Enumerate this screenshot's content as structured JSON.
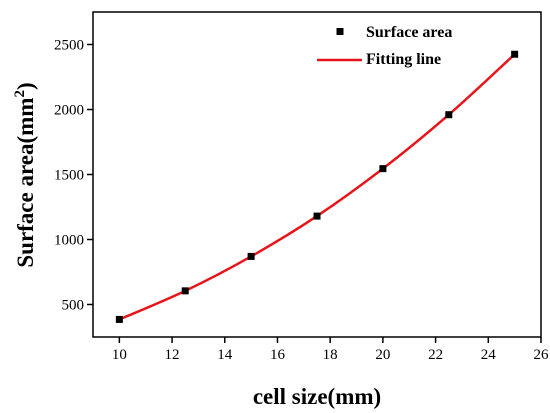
{
  "chart_data": {
    "type": "scatter",
    "title": "",
    "xlabel": "cell size(mm)",
    "ylabel_main": "Surface area(mm",
    "ylabel_sup": "2",
    "ylabel_close": ")",
    "xlim": [
      9,
      26
    ],
    "ylim": [
      250,
      2750
    ],
    "x_ticks": [
      10,
      12,
      14,
      16,
      18,
      20,
      22,
      24,
      26
    ],
    "y_ticks": [
      500,
      1000,
      1500,
      2000,
      2500
    ],
    "grid": false,
    "legend_position": "top-right",
    "series": [
      {
        "name": "Surface area",
        "kind": "markers",
        "marker": "square",
        "color": "#000000",
        "x": [
          10,
          12.5,
          15,
          17.5,
          20,
          22.5,
          25
        ],
        "y": [
          385,
          605,
          870,
          1180,
          1545,
          1960,
          2425
        ]
      },
      {
        "name": "Fitting line",
        "kind": "line",
        "color": "#e8141b",
        "x": [
          10,
          12.5,
          15,
          17.5,
          20,
          22.5,
          25
        ],
        "y": [
          385,
          605,
          870,
          1180,
          1545,
          1960,
          2425
        ]
      }
    ]
  }
}
